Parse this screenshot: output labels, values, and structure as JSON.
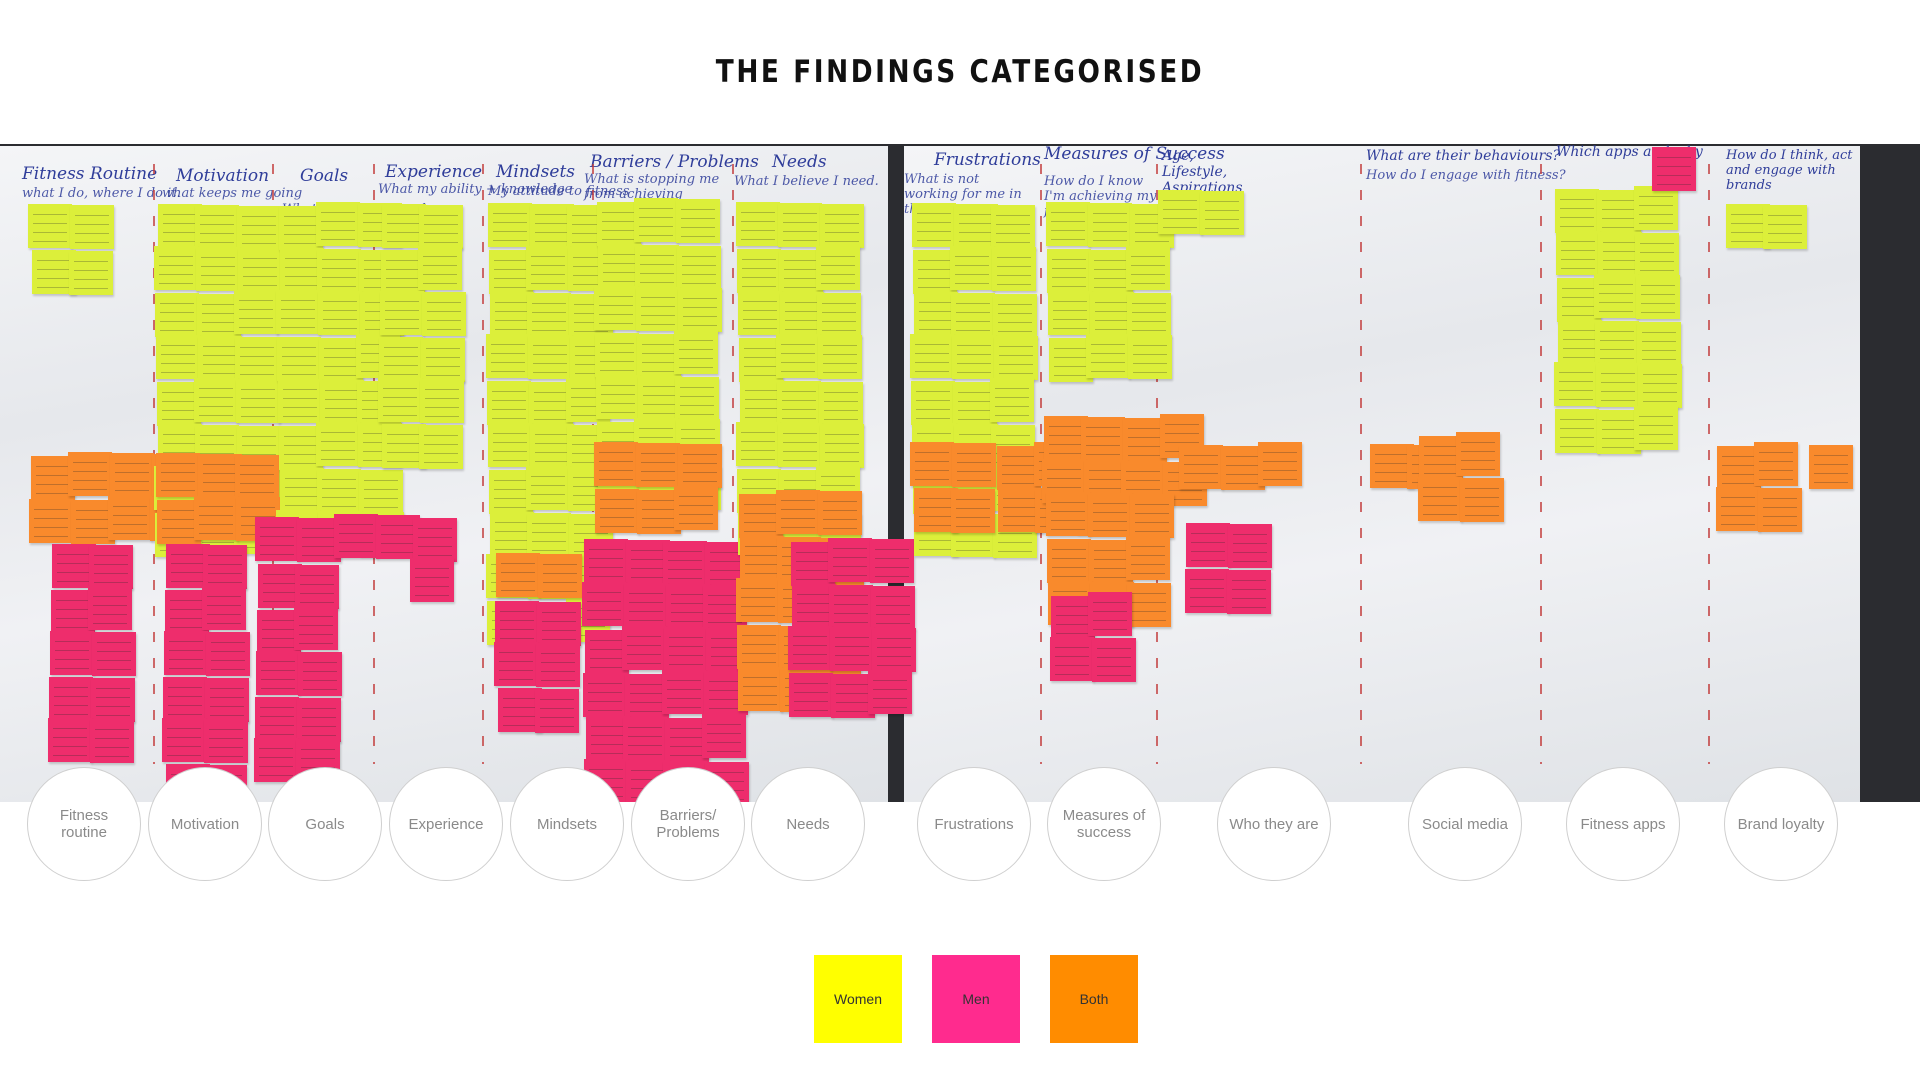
{
  "title": "THE FINDINGS CATEGORISED",
  "wall_headings": [
    {
      "text": "Fitness Routine",
      "sub": "what I do, where I do it."
    },
    {
      "text": "Motivation",
      "sub": "what keeps me going"
    },
    {
      "text": "Goals",
      "sub": "What I want ultimately"
    },
    {
      "text": "Experience",
      "sub": "What my ability + knowledge"
    },
    {
      "text": "Mindsets",
      "sub": "My attitude to fitness"
    },
    {
      "text": "Barriers / Problems",
      "sub": "What is stopping me from achieving goals."
    },
    {
      "text": "Needs",
      "sub": "What I believe I need."
    },
    {
      "text": "Frustrations",
      "sub": "What is not working for me in the app."
    },
    {
      "text": "Measures of Success",
      "sub": "How do I know I'm achieving my fitness goal"
    },
    {
      "text": "Age, Lifestyle, Aspirations",
      "sub": ""
    },
    {
      "text": "What are their behaviours?",
      "sub": "How do I engage with fitness?"
    },
    {
      "text": "Which apps and why",
      "sub": ""
    },
    {
      "text": "How do I think, act and engage with brands",
      "sub": ""
    }
  ],
  "categories": [
    "Fitness routine",
    "Motivation",
    "Goals",
    "Experience",
    "Mindsets",
    "Barriers/ Problems",
    "Needs",
    "Frustrations",
    "Measures of success",
    "Who they are",
    "Social media",
    "Fitness apps",
    "Brand loyalty"
  ],
  "legend": [
    {
      "label": "Women",
      "color": "#ffff00"
    },
    {
      "label": "Men",
      "color": "#ff2b8e"
    },
    {
      "label": "Both",
      "color": "#ff8c00"
    }
  ],
  "colors": {
    "women_note": "#dcef3a",
    "men_note": "#ee2d6c",
    "both_note": "#f98a2c"
  }
}
